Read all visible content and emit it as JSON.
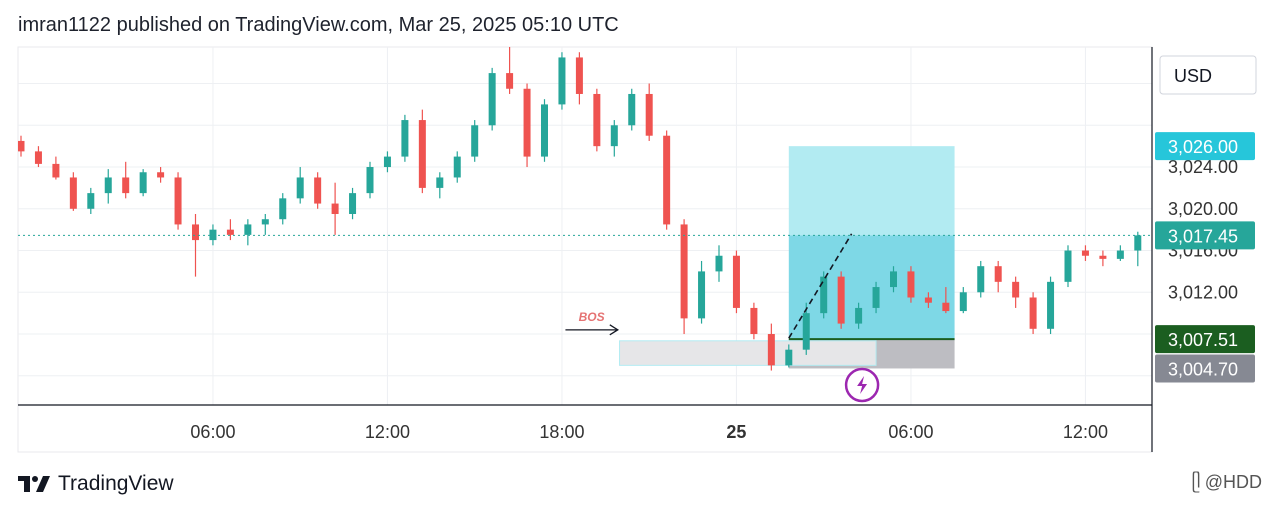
{
  "header": {
    "publish_line": "imran1122 published on TradingView.com, Mar 25, 2025 05:10 UTC"
  },
  "footer": {
    "brand": "TradingView",
    "watermark": "@HDD"
  },
  "colors": {
    "up": "#26a69a",
    "down": "#ef5350",
    "target": "#7ed8e6",
    "target_light": "#b2ebf2",
    "stop": "#bdbdc2",
    "entry_line": "#1b5e20",
    "bos_box": "#e6e6e8",
    "last_price": "#26a69a",
    "target_label": "#26c6da",
    "entry_label": "#1b5e20",
    "stop_label": "#868993"
  },
  "chart_data": {
    "type": "candlestick",
    "currency": "USD",
    "y_ticks": [
      3024,
      3020,
      3016,
      3012
    ],
    "y_tick_labels": [
      "3,024.00",
      "3,020.00",
      "3,016.00",
      "3,012.00"
    ],
    "x_ticks": [
      {
        "label": "06:00",
        "index": 11,
        "bold": false
      },
      {
        "label": "12:00",
        "index": 21,
        "bold": false
      },
      {
        "label": "18:00",
        "index": 31,
        "bold": false
      },
      {
        "label": "25",
        "index": 41,
        "bold": true
      },
      {
        "label": "06:00",
        "index": 51,
        "bold": false
      },
      {
        "label": "12:00",
        "index": 61,
        "bold": false
      }
    ],
    "price_labels": {
      "target": "3,026.00",
      "last": "3,017.45",
      "entry": "3,007.51",
      "stop": "3,004.70"
    },
    "levels": {
      "target": 3026.0,
      "last": 3017.45,
      "entry": 3007.51,
      "stop": 3004.7
    },
    "position": {
      "start_index": 44,
      "end_index": 53.5
    },
    "bos": {
      "label": "BOS",
      "level": 3008.4,
      "from_index": 31.2,
      "to_index": 34.2,
      "box_top": 3007.35,
      "box_bottom": 3005.0,
      "box_end_index": 49
    },
    "trend_line": {
      "from_index": 44,
      "from_price": 3007.6,
      "to_index": 47.6,
      "to_price": 3017.6
    },
    "candles": [
      [
        3026.5,
        3027.0,
        3025.0,
        3025.5
      ],
      [
        3025.5,
        3026.0,
        3024.0,
        3024.3
      ],
      [
        3024.3,
        3025.0,
        3022.8,
        3023.0
      ],
      [
        3023.0,
        3023.5,
        3019.8,
        3020.0
      ],
      [
        3020.0,
        3022.0,
        3019.5,
        3021.5
      ],
      [
        3021.5,
        3023.8,
        3020.5,
        3023.0
      ],
      [
        3023.0,
        3024.5,
        3021.0,
        3021.5
      ],
      [
        3021.5,
        3023.8,
        3021.2,
        3023.5
      ],
      [
        3023.5,
        3024.0,
        3022.5,
        3023.0
      ],
      [
        3023.0,
        3023.5,
        3018.0,
        3018.5
      ],
      [
        3018.5,
        3019.5,
        3013.5,
        3017.0
      ],
      [
        3017.0,
        3018.5,
        3016.5,
        3018.0
      ],
      [
        3018.0,
        3019.0,
        3017.0,
        3017.5
      ],
      [
        3017.5,
        3019.0,
        3016.5,
        3018.5
      ],
      [
        3018.5,
        3019.5,
        3017.5,
        3019.0
      ],
      [
        3019.0,
        3021.5,
        3018.5,
        3021.0
      ],
      [
        3021.0,
        3024.0,
        3020.5,
        3023.0
      ],
      [
        3023.0,
        3023.5,
        3020.0,
        3020.5
      ],
      [
        3020.5,
        3022.5,
        3017.5,
        3019.5
      ],
      [
        3019.5,
        3022.0,
        3019.0,
        3021.5
      ],
      [
        3021.5,
        3024.5,
        3021.0,
        3024.0
      ],
      [
        3024.0,
        3025.5,
        3023.5,
        3025.0
      ],
      [
        3025.0,
        3029.0,
        3024.5,
        3028.5
      ],
      [
        3028.5,
        3029.5,
        3021.5,
        3022.0
      ],
      [
        3022.0,
        3023.5,
        3021.0,
        3023.0
      ],
      [
        3023.0,
        3025.5,
        3022.5,
        3025.0
      ],
      [
        3025.0,
        3028.5,
        3024.5,
        3028.0
      ],
      [
        3028.0,
        3033.5,
        3027.5,
        3033.0
      ],
      [
        3033.0,
        3035.5,
        3031.0,
        3031.5
      ],
      [
        3031.5,
        3032.0,
        3024.0,
        3025.0
      ],
      [
        3025.0,
        3030.5,
        3024.5,
        3030.0
      ],
      [
        3030.0,
        3035.0,
        3029.5,
        3034.5
      ],
      [
        3034.5,
        3035.0,
        3030.0,
        3031.0
      ],
      [
        3031.0,
        3031.5,
        3025.5,
        3026.0
      ],
      [
        3026.0,
        3028.5,
        3025.0,
        3028.0
      ],
      [
        3028.0,
        3031.5,
        3027.5,
        3031.0
      ],
      [
        3031.0,
        3032.0,
        3026.5,
        3027.0
      ],
      [
        3027.0,
        3027.5,
        3018.0,
        3018.5
      ],
      [
        3018.5,
        3019.0,
        3008.0,
        3009.5
      ],
      [
        3009.5,
        3015.0,
        3009.0,
        3014.0
      ],
      [
        3014.0,
        3016.5,
        3013.0,
        3015.5
      ],
      [
        3015.5,
        3016.0,
        3010.0,
        3010.5
      ],
      [
        3010.5,
        3011.0,
        3007.5,
        3008.0
      ],
      [
        3008.0,
        3009.0,
        3004.5,
        3005.0
      ],
      [
        3005.0,
        3007.0,
        3004.8,
        3006.5
      ],
      [
        3006.5,
        3011.0,
        3006.0,
        3010.0
      ],
      [
        3010.0,
        3014.0,
        3009.5,
        3013.5
      ],
      [
        3013.5,
        3014.0,
        3008.5,
        3009.0
      ],
      [
        3009.0,
        3011.0,
        3008.5,
        3010.5
      ],
      [
        3010.5,
        3013.0,
        3010.0,
        3012.5
      ],
      [
        3012.5,
        3014.5,
        3012.0,
        3014.0
      ],
      [
        3014.0,
        3014.5,
        3011.0,
        3011.5
      ],
      [
        3011.5,
        3012.0,
        3010.5,
        3011.0
      ],
      [
        3011.0,
        3012.5,
        3010.0,
        3010.2
      ],
      [
        3010.2,
        3012.5,
        3010.0,
        3012.0
      ],
      [
        3012.0,
        3015.0,
        3011.5,
        3014.5
      ],
      [
        3014.5,
        3015.0,
        3012.0,
        3013.0
      ],
      [
        3013.0,
        3013.5,
        3010.5,
        3011.5
      ],
      [
        3011.5,
        3012.0,
        3008.0,
        3008.5
      ],
      [
        3008.5,
        3013.5,
        3008.0,
        3013.0
      ],
      [
        3013.0,
        3016.5,
        3012.5,
        3016.0
      ],
      [
        3016.0,
        3016.5,
        3015.0,
        3015.5
      ],
      [
        3015.5,
        3016.0,
        3014.5,
        3015.2
      ],
      [
        3015.2,
        3016.5,
        3015.0,
        3016.0
      ],
      [
        3016.0,
        3017.8,
        3014.5,
        3017.45
      ]
    ]
  }
}
